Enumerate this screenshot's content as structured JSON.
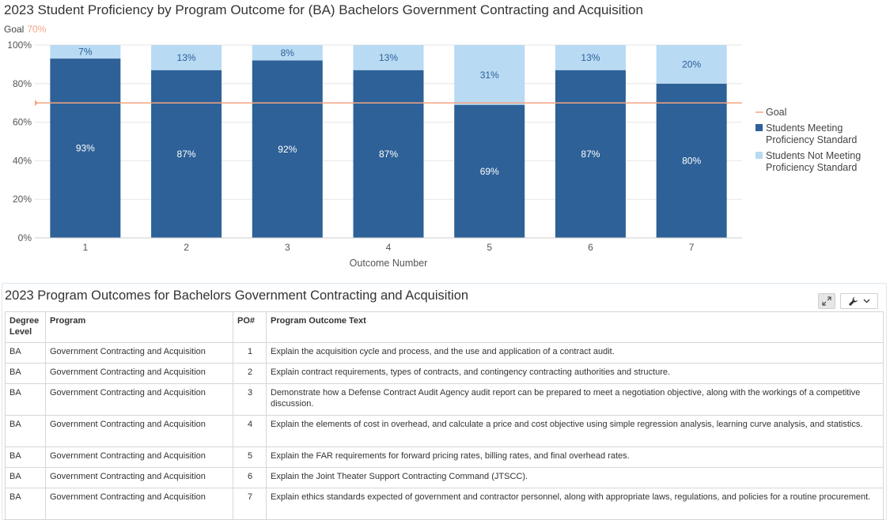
{
  "chart": {
    "title": "2023 Student Proficiency by Program Outcome for (BA) Bachelors Government Contracting and Acquisition",
    "goal_label": "Goal",
    "goal_value_label": "70%"
  },
  "chart_data": {
    "type": "bar",
    "stacked": true,
    "categories": [
      "1",
      "2",
      "3",
      "4",
      "5",
      "6",
      "7"
    ],
    "series": [
      {
        "name": "Students Meeting Proficiency Standard",
        "values": [
          93,
          87,
          92,
          87,
          69,
          87,
          80
        ],
        "color": "#2d6197"
      },
      {
        "name": "Students Not Meeting Proficiency Standard",
        "values": [
          7,
          13,
          8,
          13,
          31,
          13,
          20
        ],
        "color": "#b8daf3"
      }
    ],
    "goal": {
      "name": "Goal",
      "value": 70,
      "color": "#f4a582"
    },
    "xlabel": "Outcome Number",
    "ylabel": "",
    "ylim": [
      0,
      100
    ],
    "yticks": [
      "0%",
      "20%",
      "40%",
      "60%",
      "80%",
      "100%"
    ],
    "grid": true,
    "legend_position": "right"
  },
  "legend": {
    "goal": "Goal",
    "meeting_line1": "Students Meeting",
    "meeting_line2": "Proficiency Standard",
    "not_meeting_line1": "Students Not Meeting",
    "not_meeting_line2": "Proficiency Standard"
  },
  "table_panel": {
    "title": "2023 Program Outcomes for Bachelors Government Contracting and Acquisition",
    "expand_icon": "expand-icon",
    "wrench_icon": "wrench-icon",
    "dropdown_icon": "chevron-down-icon",
    "columns": [
      "Degree Level",
      "Program",
      "PO#",
      "Program Outcome Text"
    ],
    "rows": [
      {
        "degree": "BA",
        "program": "Government Contracting and Acquisition",
        "po": "1",
        "text": "Explain the acquisition cycle and process, and the use and application of a contract audit."
      },
      {
        "degree": "BA",
        "program": "Government Contracting and Acquisition",
        "po": "2",
        "text": "Explain contract requirements, types of contracts, and contingency contracting authorities and structure."
      },
      {
        "degree": "BA",
        "program": "Government Contracting and Acquisition",
        "po": "3",
        "text": "Demonstrate how a Defense Contract Audit Agency audit report can be prepared to meet a negotiation objective, along with the workings of a competitive discussion."
      },
      {
        "degree": "BA",
        "program": "Government Contracting and Acquisition",
        "po": "4",
        "text": "Explain the elements of cost in overhead, and calculate a price and cost objective using simple regression analysis, learning curve analysis, and statistics."
      },
      {
        "degree": "BA",
        "program": "Government Contracting and Acquisition",
        "po": "5",
        "text": "Explain the FAR requirements for forward pricing rates, billing rates, and final overhead rates."
      },
      {
        "degree": "BA",
        "program": "Government Contracting and Acquisition",
        "po": "6",
        "text": "Explain the Joint Theater Support Contracting Command (JTSCC)."
      },
      {
        "degree": "BA",
        "program": "Government Contracting and Acquisition",
        "po": "7",
        "text": "Explain ethics standards expected of government and contractor personnel, along with appropriate laws, regulations, and policies for a routine procurement."
      }
    ]
  }
}
